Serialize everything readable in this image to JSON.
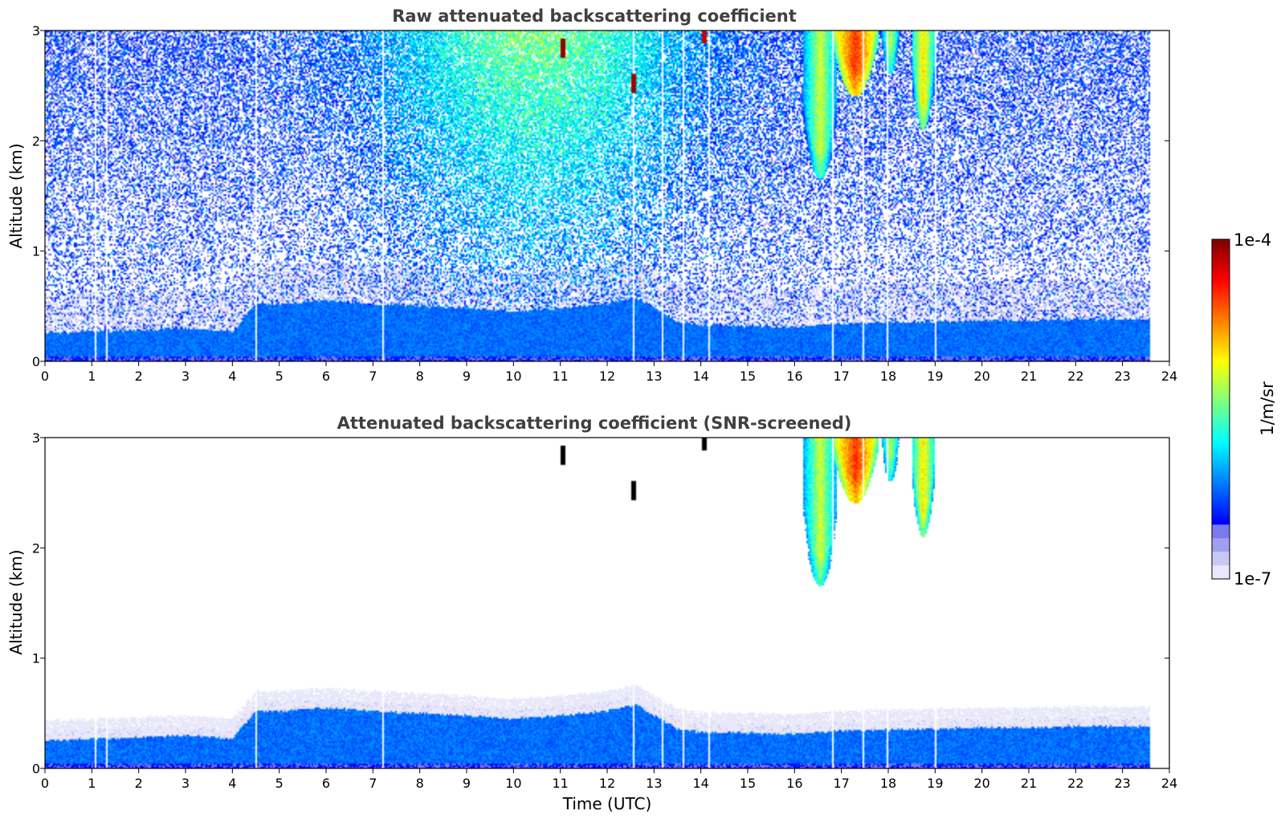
{
  "chart_data": [
    {
      "type": "heatmap",
      "title": "Raw attenuated backscattering coefficient",
      "xlabel": "",
      "ylabel": "Altitude (km)",
      "xlim": [
        0,
        24
      ],
      "ylim": [
        0,
        3
      ],
      "x_ticks": [
        0,
        1,
        2,
        3,
        4,
        5,
        6,
        7,
        8,
        9,
        10,
        11,
        12,
        13,
        14,
        15,
        16,
        17,
        18,
        19,
        20,
        21,
        22,
        23,
        24
      ],
      "y_ticks": [
        0,
        1,
        2,
        3
      ],
      "data_end_time": 23.6,
      "boundary_layer_top_km": [
        [
          0,
          0.25
        ],
        [
          1,
          0.27
        ],
        [
          2,
          0.28
        ],
        [
          3,
          0.3
        ],
        [
          4,
          0.27
        ],
        [
          4.5,
          0.52
        ],
        [
          5,
          0.52
        ],
        [
          6,
          0.55
        ],
        [
          7,
          0.52
        ],
        [
          8,
          0.5
        ],
        [
          9,
          0.48
        ],
        [
          10,
          0.45
        ],
        [
          11,
          0.48
        ],
        [
          12,
          0.52
        ],
        [
          12.6,
          0.58
        ],
        [
          13,
          0.48
        ],
        [
          13.5,
          0.36
        ],
        [
          14,
          0.33
        ],
        [
          15,
          0.32
        ],
        [
          16,
          0.31
        ],
        [
          17,
          0.34
        ],
        [
          18,
          0.35
        ],
        [
          19,
          0.36
        ],
        [
          20,
          0.37
        ],
        [
          21,
          0.37
        ],
        [
          22,
          0.38
        ],
        [
          23,
          0.38
        ],
        [
          23.6,
          0.38
        ]
      ],
      "clouds": [
        {
          "t_start": 16.2,
          "t_end": 16.9,
          "z_bottom_km": 1.65,
          "z_top_km": 3.0,
          "peak_log10": -5.2
        },
        {
          "t_start": 16.8,
          "t_end": 17.8,
          "z_bottom_km": 2.4,
          "z_top_km": 3.0,
          "peak_log10": -4.5
        },
        {
          "t_start": 17.8,
          "t_end": 18.3,
          "z_bottom_km": 2.6,
          "z_top_km": 3.0,
          "peak_log10": -5.3
        },
        {
          "t_start": 18.5,
          "t_end": 19.0,
          "z_bottom_km": 2.1,
          "z_top_km": 3.0,
          "peak_log10": -5.0
        }
      ],
      "spikes": [
        {
          "t": 11.05,
          "z_km": 2.82,
          "log10": -4.05
        },
        {
          "t": 12.55,
          "z_km": 2.5,
          "log10": -4.1
        },
        {
          "t": 14.05,
          "z_km": 2.95,
          "log10": -4.2
        }
      ],
      "data_gaps_utc": [
        1.05,
        1.3,
        4.5,
        7.2,
        12.55,
        13.15,
        13.6,
        14.15,
        16.8,
        17.45,
        17.95,
        19.0
      ]
    },
    {
      "type": "heatmap",
      "title": "Attenuated backscattering coefficient (SNR-screened)",
      "xlabel": "Time (UTC)",
      "ylabel": "Altitude (km)",
      "xlim": [
        0,
        24
      ],
      "ylim": [
        0,
        3
      ],
      "x_ticks": [
        0,
        1,
        2,
        3,
        4,
        5,
        6,
        7,
        8,
        9,
        10,
        11,
        12,
        13,
        14,
        15,
        16,
        17,
        18,
        19,
        20,
        21,
        22,
        23,
        24
      ],
      "y_ticks": [
        0,
        1,
        2,
        3
      ],
      "screened": true
    }
  ],
  "colorbar": {
    "label": "1/m/sr",
    "min_label": "1e-7",
    "max_label": "1e-4",
    "min_log10": -7,
    "max_log10": -4,
    "colormap": "jet",
    "low_end_colors": [
      "#e8e8fa",
      "#c8c8f5",
      "#a0a0f0",
      "#7a7aef"
    ]
  }
}
